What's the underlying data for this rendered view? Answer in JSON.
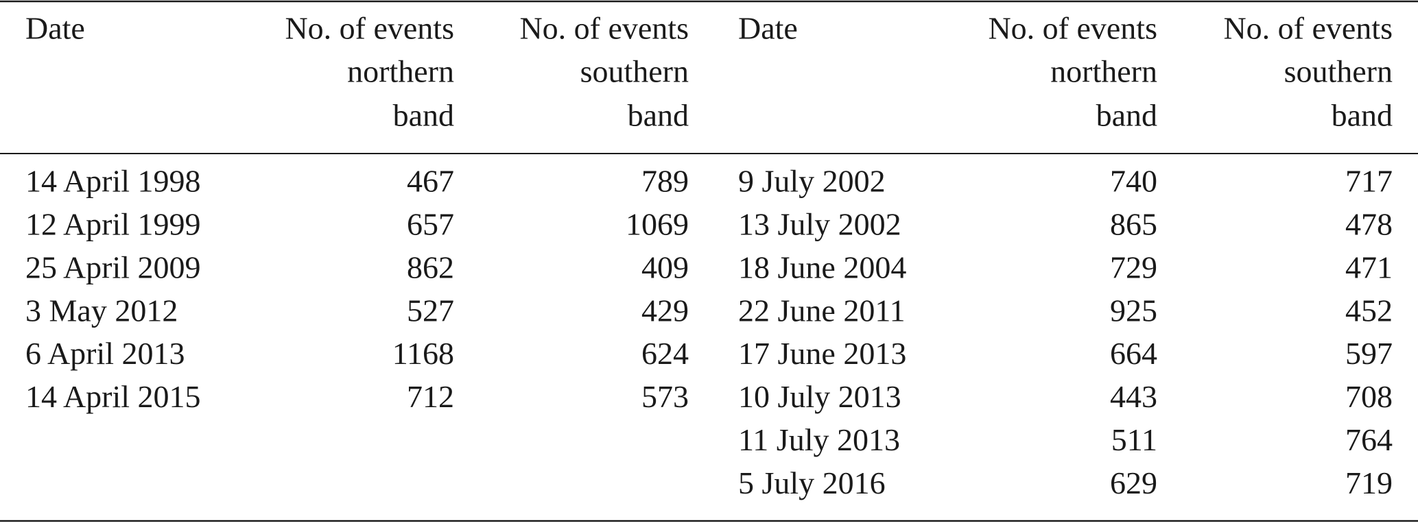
{
  "table": {
    "left": {
      "columns": [
        [
          "Date"
        ],
        [
          "No. of events",
          "northern",
          "band"
        ],
        [
          "No. of events",
          "southern",
          "band"
        ]
      ],
      "rows": [
        [
          "14 April 1998",
          467,
          789
        ],
        [
          "12 April 1999",
          657,
          1069
        ],
        [
          "25 April 2009",
          862,
          409
        ],
        [
          "3 May 2012",
          527,
          429
        ],
        [
          "6 April 2013",
          1168,
          624
        ],
        [
          "14 April 2015",
          712,
          573
        ]
      ]
    },
    "right": {
      "columns": [
        [
          "Date"
        ],
        [
          "No. of events",
          "northern",
          "band"
        ],
        [
          "No. of events",
          "southern",
          "band"
        ]
      ],
      "rows": [
        [
          "9 July 2002",
          740,
          717
        ],
        [
          "13 July 2002",
          865,
          478
        ],
        [
          "18 June 2004",
          729,
          471
        ],
        [
          "22 June 2011",
          925,
          452
        ],
        [
          "17 June 2013",
          664,
          597
        ],
        [
          "10 July 2013",
          443,
          708
        ],
        [
          "11 July 2013",
          511,
          764
        ],
        [
          "5 July 2016",
          629,
          719
        ]
      ]
    }
  }
}
